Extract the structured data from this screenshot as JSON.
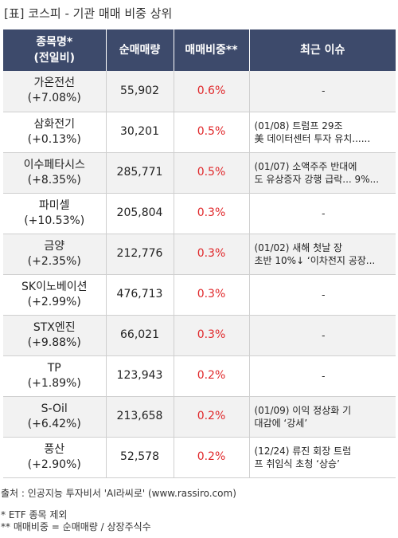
{
  "title": "[표] 코스피 - 기관 매매 비중 상위",
  "headers": {
    "name": "종목명*\n(전일비)",
    "volume": "순매매량",
    "ratio": "매매비중**",
    "issue": "최근 이슈"
  },
  "rows": [
    {
      "name": "가온전선",
      "change": "(+7.08%)",
      "volume": "55,902",
      "ratio": "0.6%",
      "issue": "-"
    },
    {
      "name": "삼화전기",
      "change": "(+0.13%)",
      "volume": "30,201",
      "ratio": "0.5%",
      "issue": "(01/08) 트럼프 29조\n美 데이터센터 투자 유치......"
    },
    {
      "name": "이수페타시스",
      "change": "(+8.35%)",
      "volume": "285,771",
      "ratio": "0.5%",
      "issue": "(01/07) 소액주주 반대에\n도 유상증자 강행 급락... 9%..."
    },
    {
      "name": "파미셀",
      "change": "(+10.53%)",
      "volume": "205,804",
      "ratio": "0.3%",
      "issue": "-"
    },
    {
      "name": "금양",
      "change": "(+2.35%)",
      "volume": "212,776",
      "ratio": "0.3%",
      "issue": "(01/02) 새해 첫날 장\n초반 10%↓ ‘이차전지 공장..."
    },
    {
      "name": "SK이노베이션",
      "change": "(+2.99%)",
      "volume": "476,713",
      "ratio": "0.3%",
      "issue": "-"
    },
    {
      "name": "STX엔진",
      "change": "(+9.88%)",
      "volume": "66,021",
      "ratio": "0.3%",
      "issue": "-"
    },
    {
      "name": "TP",
      "change": "(+1.89%)",
      "volume": "123,943",
      "ratio": "0.2%",
      "issue": "-"
    },
    {
      "name": "S-Oil",
      "change": "(+6.42%)",
      "volume": "213,658",
      "ratio": "0.2%",
      "issue": "(01/09) 이익 정상화 기\n대감에 ‘강세’"
    },
    {
      "name": "풍산",
      "change": "(+2.90%)",
      "volume": "52,578",
      "ratio": "0.2%",
      "issue": "(12/24) 류진 회장 트럼\n프 취임식 초청 ‘상승’"
    }
  ],
  "footer": {
    "source": "출처 : 인공지능 투자비서 'AI라씨로' (www.rassiro.com)",
    "note1": "* ETF 종목 제외",
    "note2": "** 매매비중 = 순매매량 / 상장주식수"
  },
  "colors": {
    "header_bg": "#3d4a6b",
    "ratio_text": "#e0272a",
    "zebra": "#f2f2f2"
  }
}
